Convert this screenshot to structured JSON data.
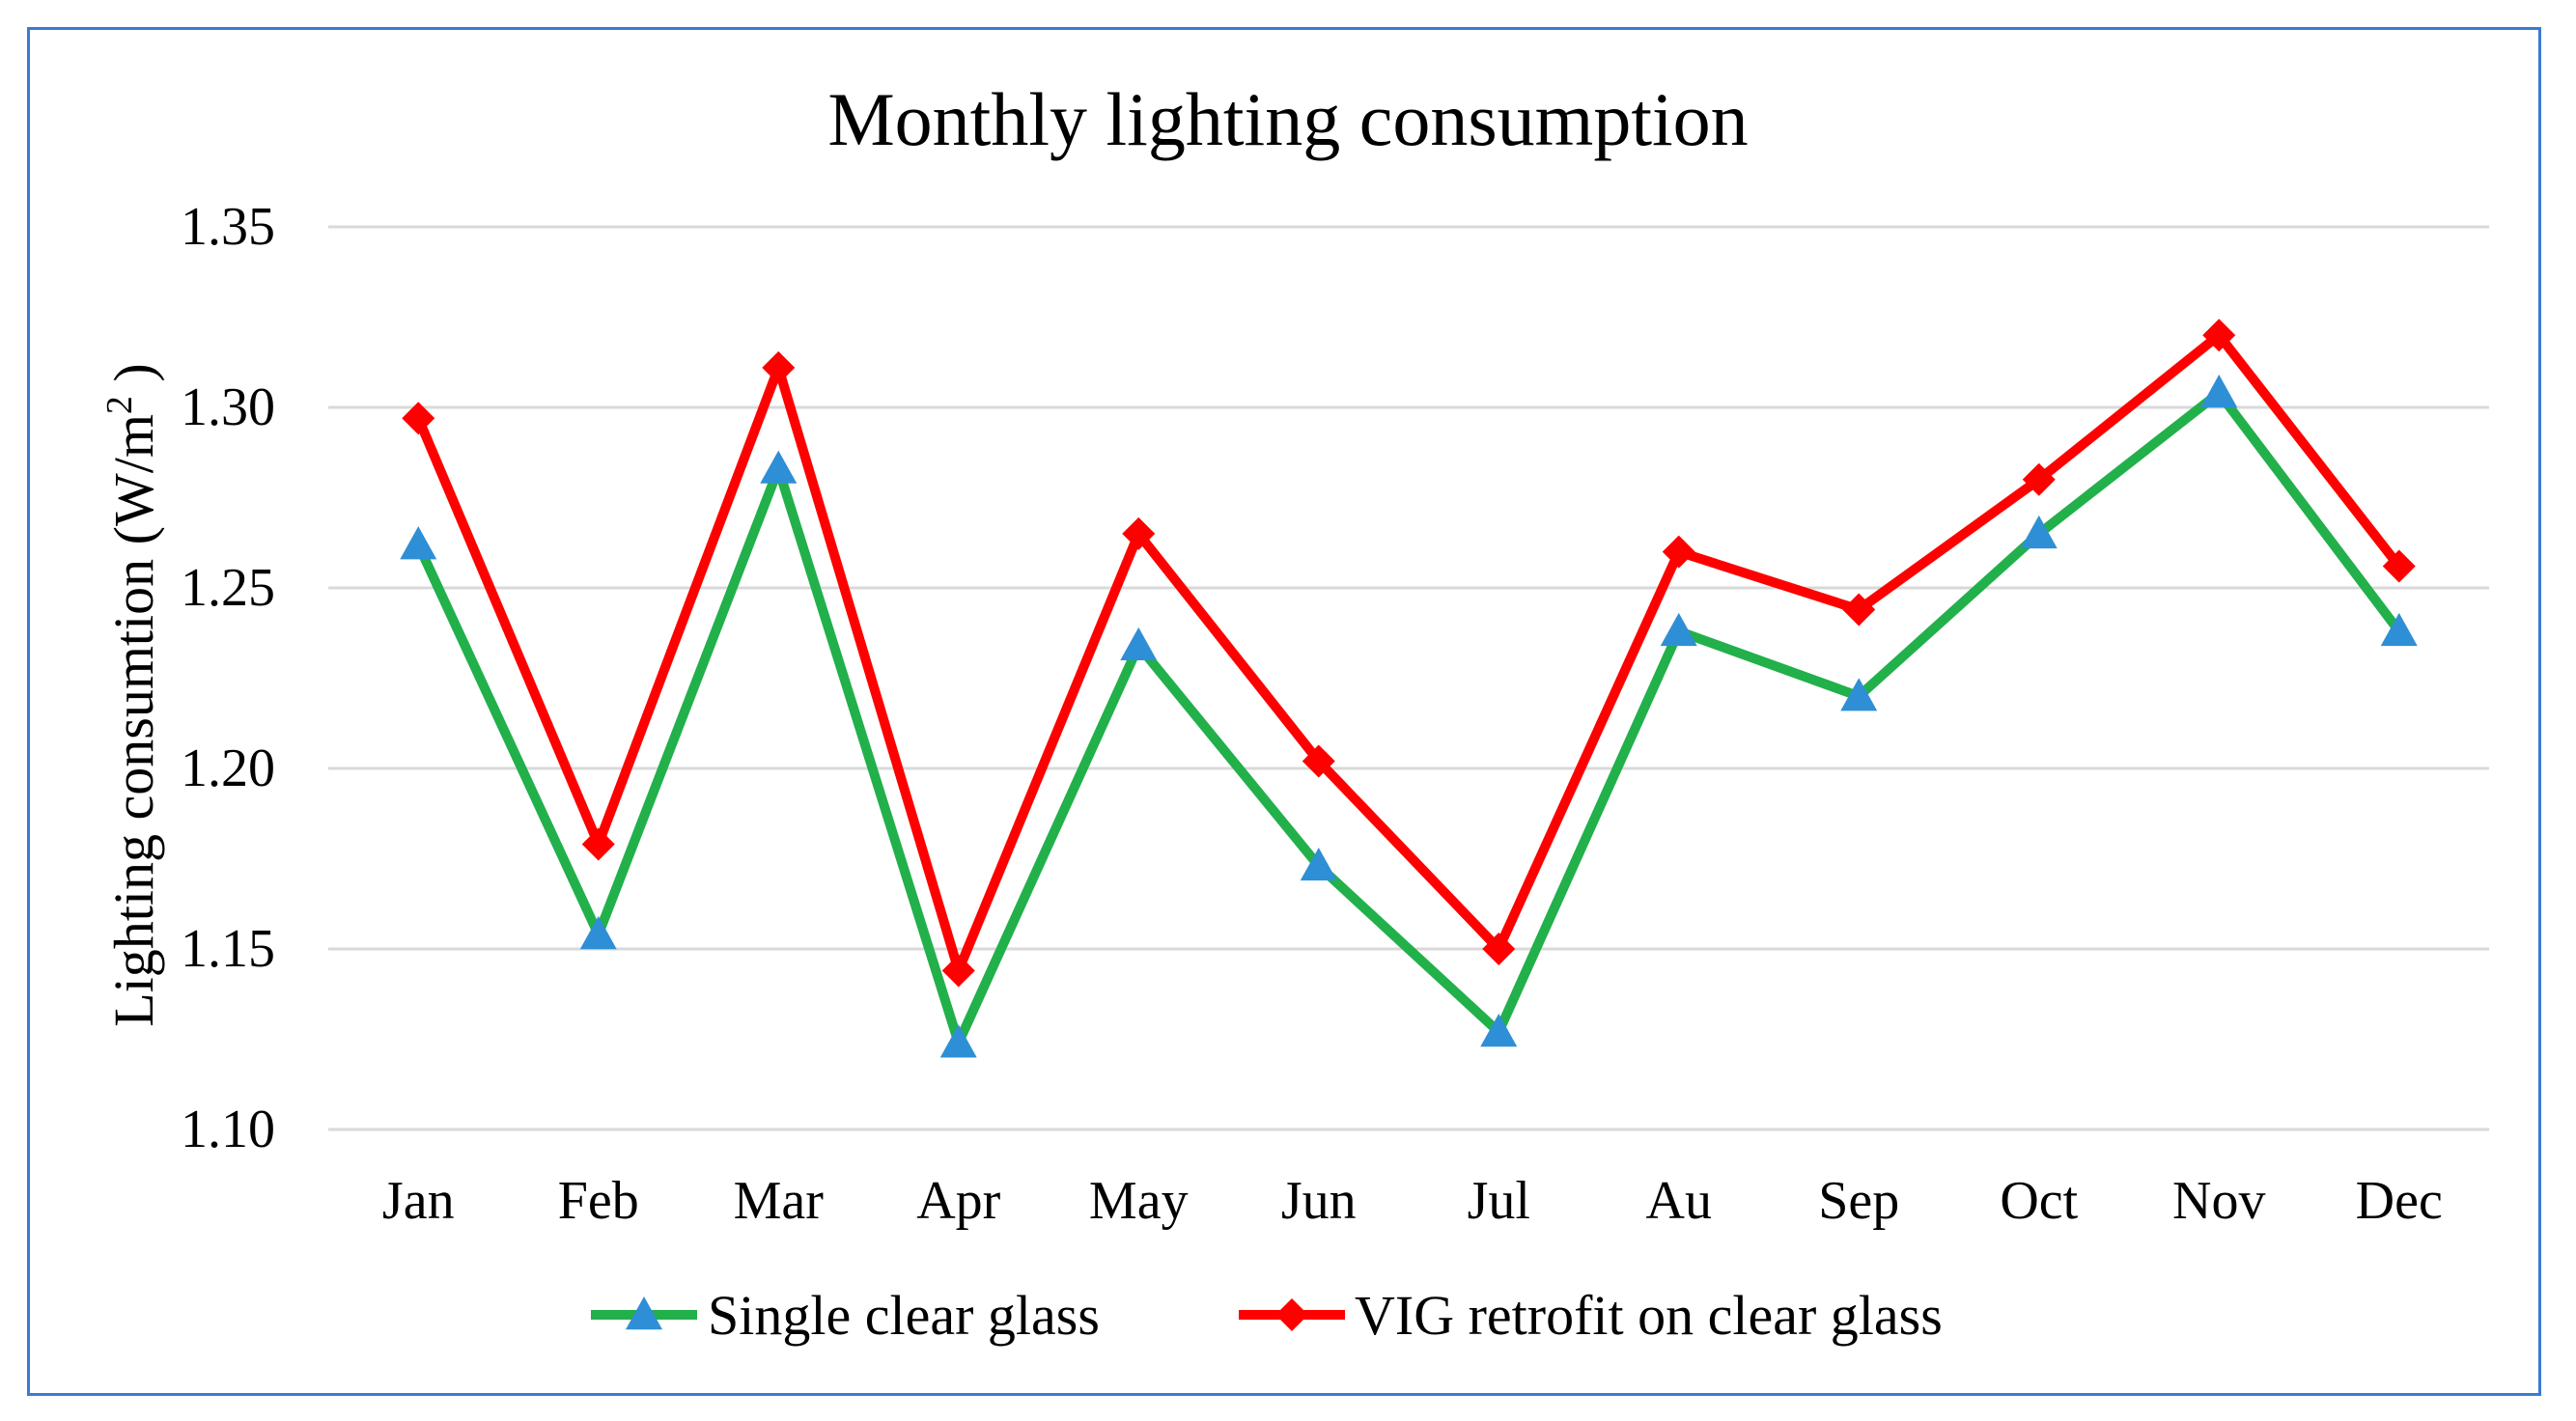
{
  "chart_data": {
    "type": "line",
    "title": "Monthly lighting consumption",
    "ylabel": "Lighting consumtion (W/m",
    "ylabel_sup": "2",
    "ylabel_close": " )",
    "xlabel": "",
    "categories": [
      "Jan",
      "Feb",
      "Mar",
      "Apr",
      "May",
      "Jun",
      "Jul",
      "Au",
      "Sep",
      "Oct",
      "Nov",
      "Dec"
    ],
    "ylim": [
      1.1,
      1.35
    ],
    "yticks": [
      "1.10",
      "1.15",
      "1.20",
      "1.25",
      "1.30",
      "1.35"
    ],
    "grid": true,
    "legend_position": "bottom",
    "series": [
      {
        "name": "Single clear glass",
        "color": "#22b04a",
        "marker": "triangle",
        "marker_color": "#2e8fd6",
        "values": [
          1.262,
          1.154,
          1.283,
          1.124,
          1.234,
          1.173,
          1.127,
          1.238,
          1.22,
          1.265,
          1.304,
          1.238
        ]
      },
      {
        "name": "VIG retrofit on clear glass",
        "color": "#ff0000",
        "marker": "diamond",
        "marker_color": "#ff0000",
        "values": [
          1.297,
          1.179,
          1.311,
          1.144,
          1.265,
          1.202,
          1.15,
          1.26,
          1.244,
          1.28,
          1.32,
          1.256
        ]
      }
    ]
  }
}
